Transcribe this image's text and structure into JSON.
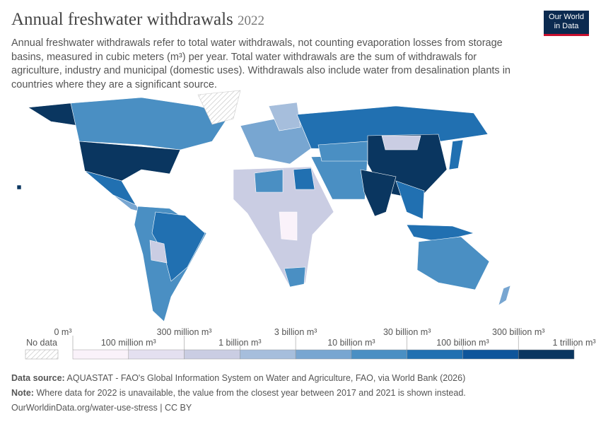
{
  "header": {
    "title": "Annual freshwater withdrawals",
    "year": "2022",
    "subtitle": "Annual freshwater withdrawals refer to total water withdrawals, not counting evaporation losses from storage basins, measured in cubic meters (m³) per year. Total water withdrawals are the sum of withdrawals for agriculture, industry and municipal (domestic uses). Withdrawals also include water from desalination plants in countries where they are a significant source.",
    "logo": [
      "Our World",
      "in Data"
    ]
  },
  "legend": {
    "no_data": "No data",
    "labels": [
      "0 m³",
      "100 million m³",
      "300 million m³",
      "1 billion m³",
      "3 billion m³",
      "10 billion m³",
      "30 billion m³",
      "100 billion m³",
      "300 billion m³",
      "1 trillion m³"
    ],
    "colors": [
      "#faf2fa",
      "#e4e0f0",
      "#cacde3",
      "#a6bedc",
      "#78a6d1",
      "#4a8fc3",
      "#2170b1",
      "#0e559b",
      "#0a3660"
    ]
  },
  "footer": {
    "source_label": "Data source:",
    "source": "AQUASTAT - FAO's Global Information System on Water and Agriculture, FAO, via World Bank (2026)",
    "note_label": "Note:",
    "note": "Where data for 2022 is unavailable, the value from the closest year between 2017 and 2021 is shown instead.",
    "url": "OurWorldinData.org/water-use-stress | CC BY"
  }
}
